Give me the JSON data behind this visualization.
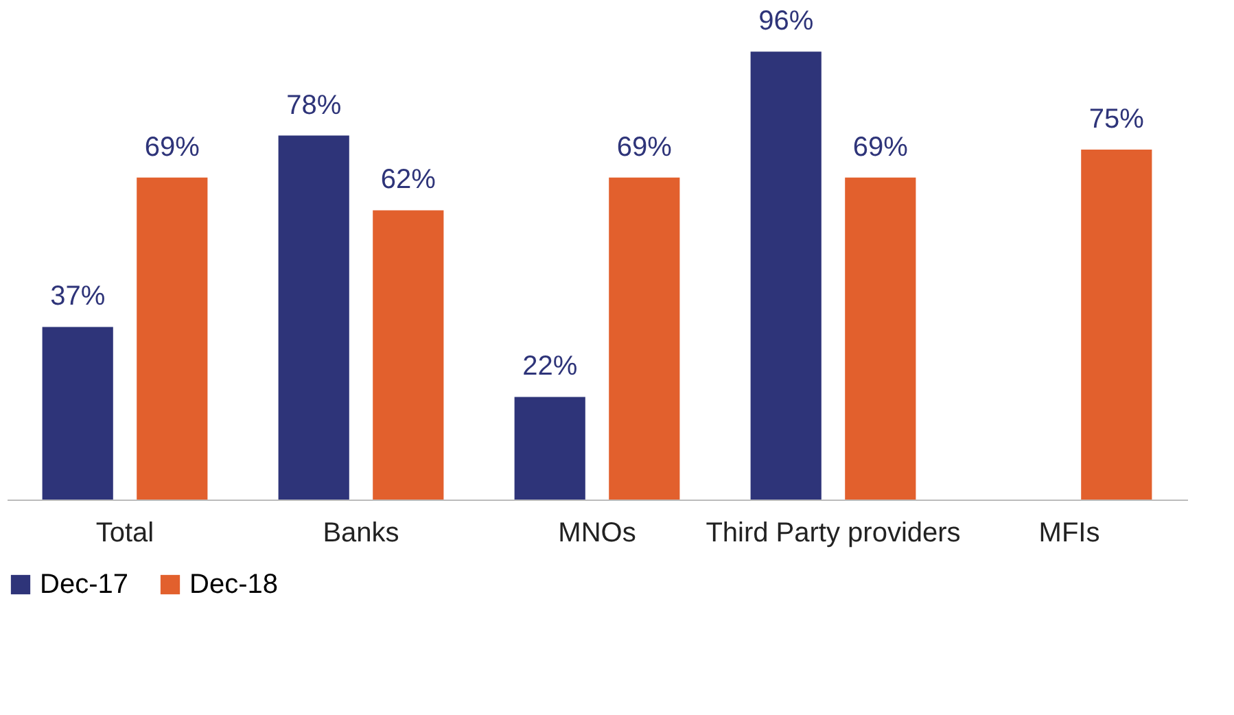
{
  "chart_data": {
    "type": "bar",
    "categories": [
      "Total",
      "Banks",
      "MNOs",
      "Third Party providers",
      "MFIs"
    ],
    "series": [
      {
        "name": "Dec-17",
        "color": "#2e3479",
        "values": [
          37,
          78,
          22,
          96,
          null
        ],
        "value_labels": [
          "37%",
          "78%",
          "22%",
          "96%",
          null
        ]
      },
      {
        "name": "Dec-18",
        "color": "#e2602d",
        "values": [
          69,
          62,
          69,
          69,
          75
        ],
        "value_labels": [
          "69%",
          "62%",
          "69%",
          "69%",
          "75%"
        ]
      }
    ],
    "legend": "bottom"
  }
}
